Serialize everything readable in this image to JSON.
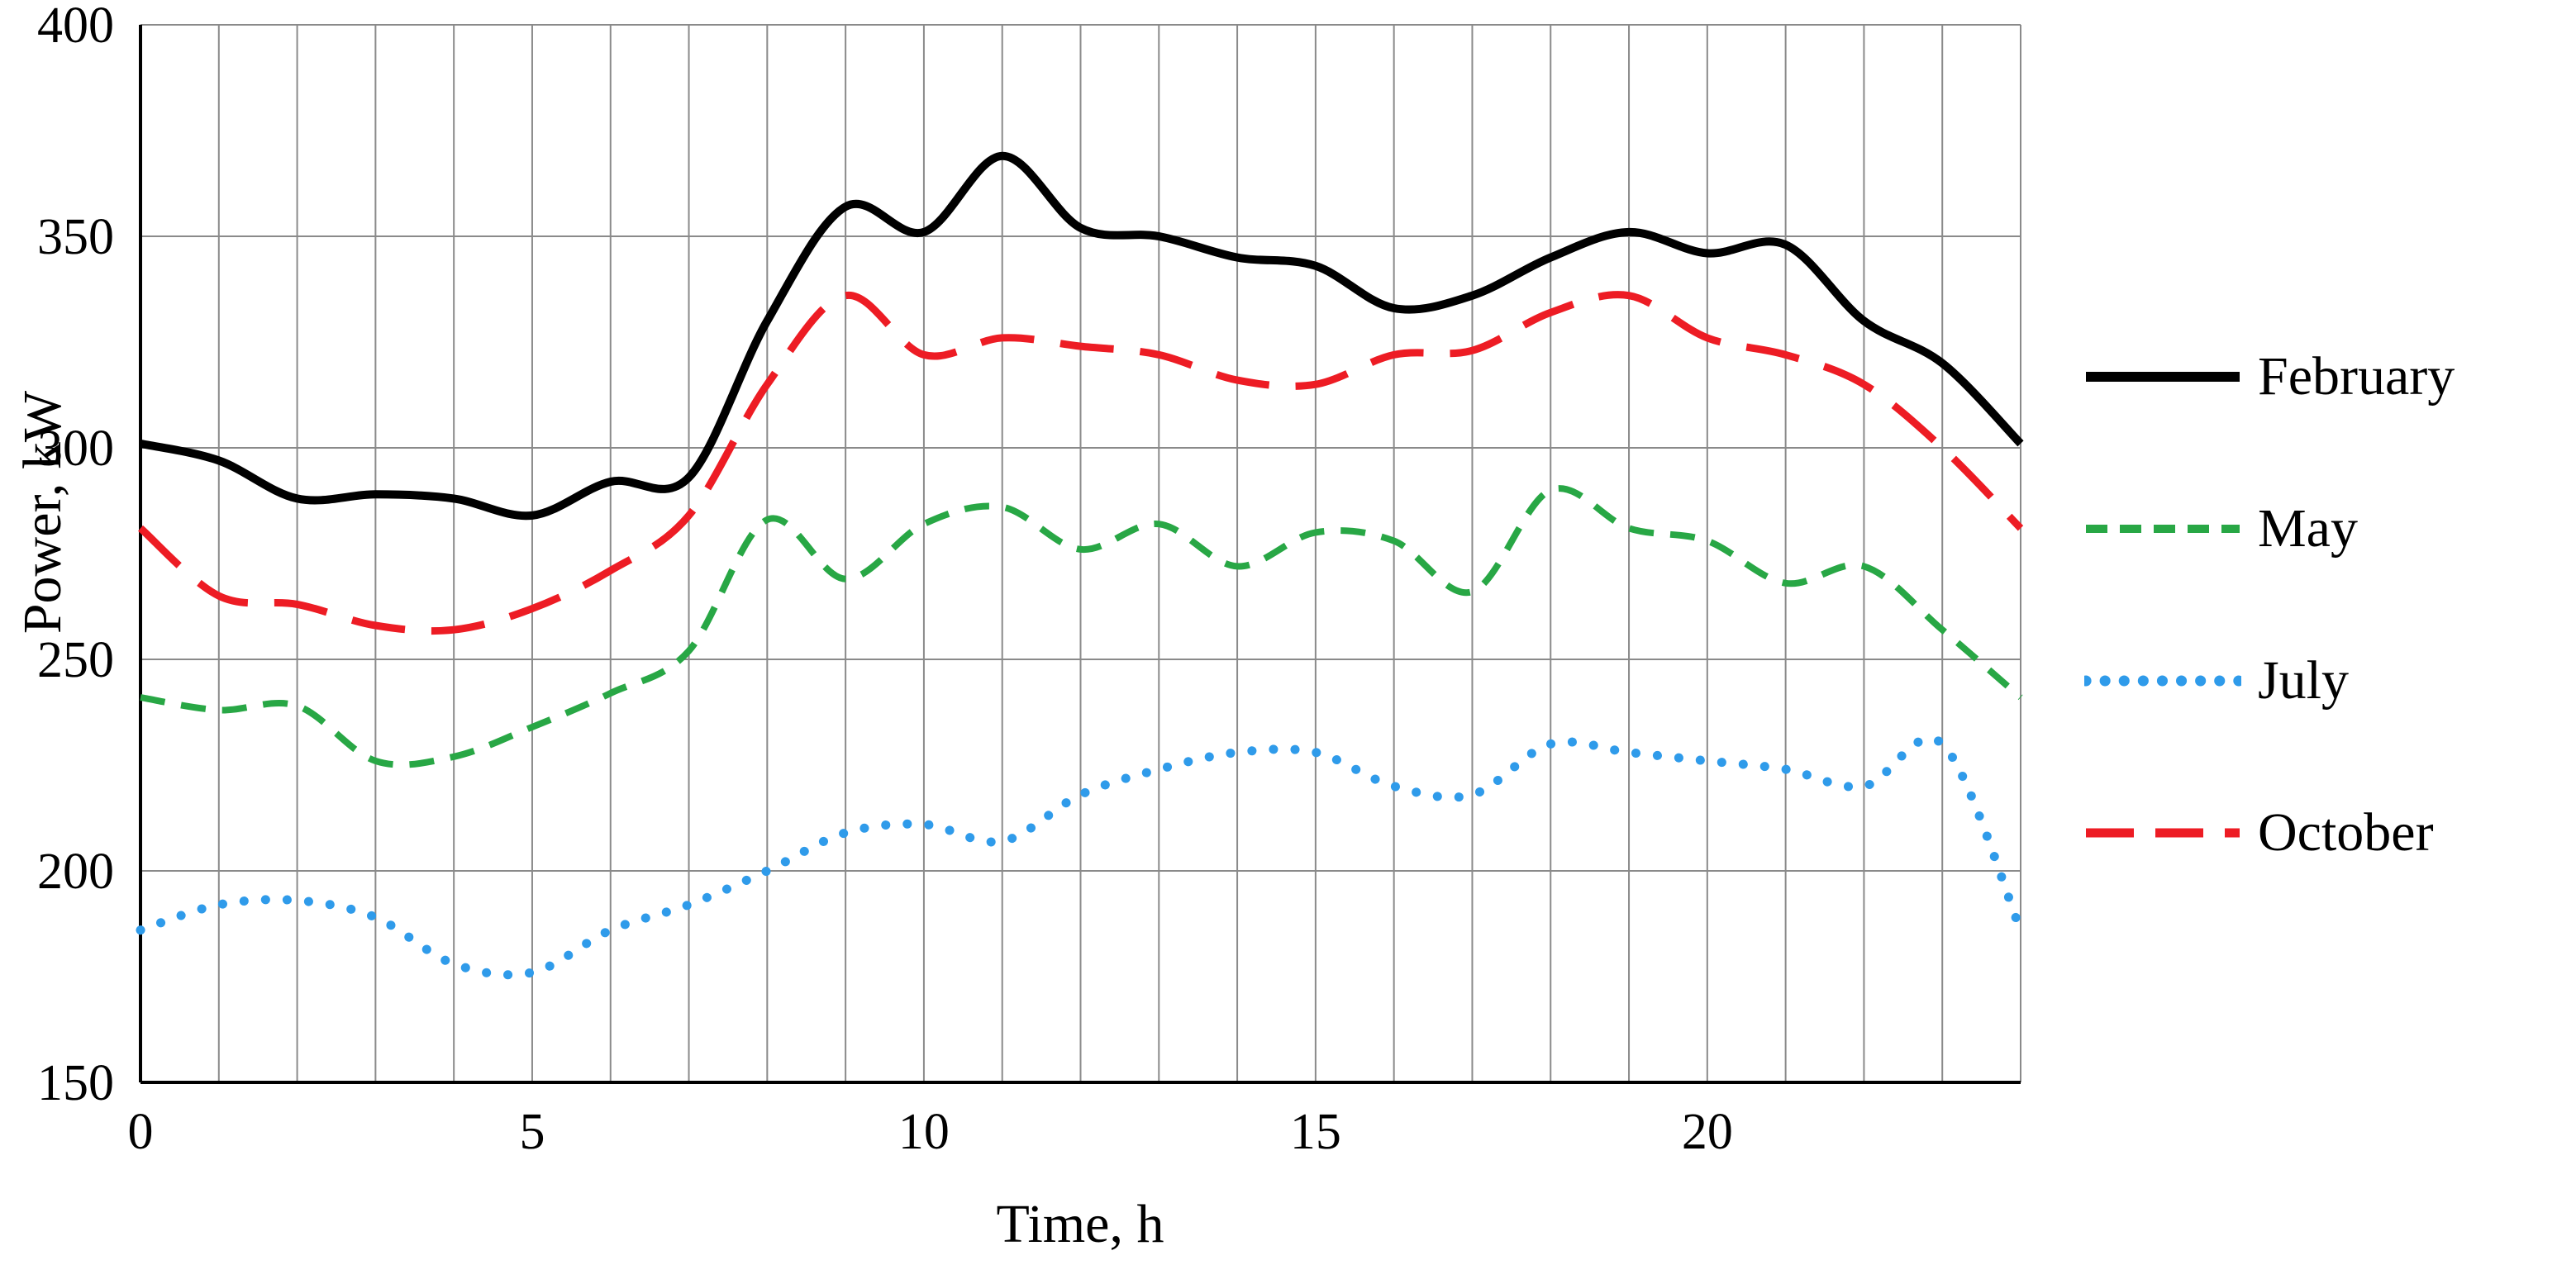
{
  "figure": {
    "background": "#ffffff"
  },
  "chart_data": {
    "type": "line",
    "title": "",
    "xlabel": "Time, h",
    "ylabel": "Power, kW",
    "xlim": [
      0,
      24
    ],
    "ylim": [
      150,
      400
    ],
    "xticks": [
      0,
      5,
      10,
      15,
      20
    ],
    "yticks": [
      150,
      200,
      250,
      300,
      350,
      400
    ],
    "grid": {
      "vertical_step": 1,
      "horizontal_step": 50,
      "color": "#8a8a8a"
    },
    "legend_position": "right",
    "x": [
      0,
      1,
      2,
      3,
      4,
      5,
      6,
      7,
      8,
      9,
      10,
      11,
      12,
      13,
      14,
      15,
      16,
      17,
      18,
      19,
      20,
      21,
      22,
      23,
      24
    ],
    "series": [
      {
        "name": "February",
        "color": "#000000",
        "style": "solid",
        "values": [
          301,
          297,
          288,
          289,
          288,
          284,
          292,
          293,
          330,
          357,
          351,
          369,
          352,
          350,
          345,
          343,
          333,
          336,
          345,
          351,
          346,
          348,
          330,
          320,
          301
        ]
      },
      {
        "name": "May",
        "color": "#28A745",
        "style": "dashed",
        "values": [
          241,
          238,
          239,
          226,
          227,
          234,
          242,
          252,
          283,
          269,
          282,
          286,
          276,
          282,
          272,
          280,
          278,
          266,
          290,
          281,
          278,
          268,
          272,
          257,
          241
        ]
      },
      {
        "name": "July",
        "color": "#2F9BEA",
        "style": "dotted",
        "values": [
          186,
          192,
          193,
          189,
          178,
          176,
          186,
          192,
          200,
          209,
          211,
          207,
          218,
          224,
          228,
          228,
          220,
          218,
          230,
          228,
          226,
          224,
          220,
          230,
          186
        ]
      },
      {
        "name": "October",
        "color": "#ED1C24",
        "style": "long-dash",
        "values": [
          281,
          265,
          263,
          258,
          257,
          262,
          271,
          284,
          315,
          336,
          322,
          326,
          324,
          322,
          316,
          315,
          322,
          323,
          332,
          336,
          326,
          322,
          315,
          300,
          281
        ]
      }
    ]
  }
}
